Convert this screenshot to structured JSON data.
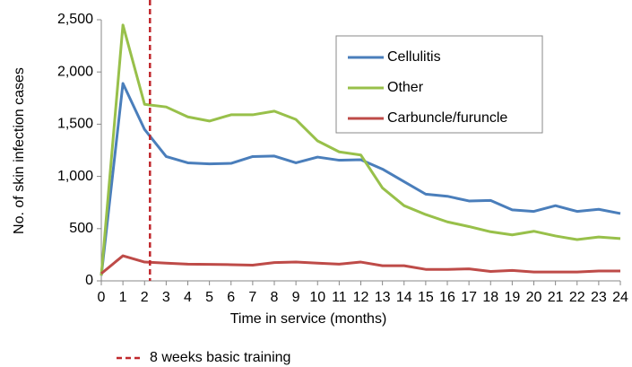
{
  "chart_data": {
    "type": "line",
    "x_label": "Time in service (months)",
    "y_label": "No. of skin infection cases",
    "x": [
      0,
      1,
      2,
      3,
      4,
      5,
      6,
      7,
      8,
      9,
      10,
      11,
      12,
      13,
      14,
      15,
      16,
      17,
      18,
      19,
      20,
      21,
      22,
      23,
      24
    ],
    "xlim": [
      0,
      24
    ],
    "xticks": [
      0,
      1,
      2,
      3,
      4,
      5,
      6,
      7,
      8,
      9,
      10,
      11,
      12,
      13,
      14,
      15,
      16,
      17,
      18,
      19,
      20,
      21,
      22,
      23,
      24
    ],
    "ylim": [
      0,
      2500
    ],
    "yticks": [
      0,
      {
        "value": 500,
        "label": "500"
      },
      {
        "value": 1000,
        "label": "1,000"
      },
      {
        "value": 1500,
        "label": "1,500"
      },
      {
        "value": 2000,
        "label": "2,000"
      },
      {
        "value": 2500,
        "label": "2,500"
      }
    ],
    "grid": false,
    "legend": "upper right",
    "series": [
      {
        "name": "Cellulitis",
        "color": "#4a7ebb",
        "values": [
          50,
          1890,
          1450,
          1190,
          1130,
          1120,
          1125,
          1190,
          1195,
          1130,
          1185,
          1155,
          1160,
          1070,
          950,
          830,
          810,
          765,
          770,
          680,
          665,
          720,
          665,
          685,
          645
        ]
      },
      {
        "name": "Other",
        "color": "#98c04a",
        "values": [
          50,
          2450,
          1690,
          1665,
          1570,
          1530,
          1590,
          1590,
          1625,
          1545,
          1340,
          1235,
          1205,
          890,
          720,
          635,
          565,
          520,
          470,
          440,
          475,
          430,
          395,
          420,
          405
        ]
      },
      {
        "name": "Carbuncle/furuncle",
        "color": "#be4b48",
        "values": [
          70,
          240,
          180,
          170,
          160,
          158,
          155,
          150,
          175,
          180,
          170,
          160,
          180,
          145,
          145,
          110,
          110,
          115,
          90,
          100,
          85,
          85,
          85,
          95,
          95
        ]
      }
    ],
    "reference_line": {
      "x": 2.25,
      "label": "8 weeks basic training",
      "color": "#c0282d"
    }
  }
}
